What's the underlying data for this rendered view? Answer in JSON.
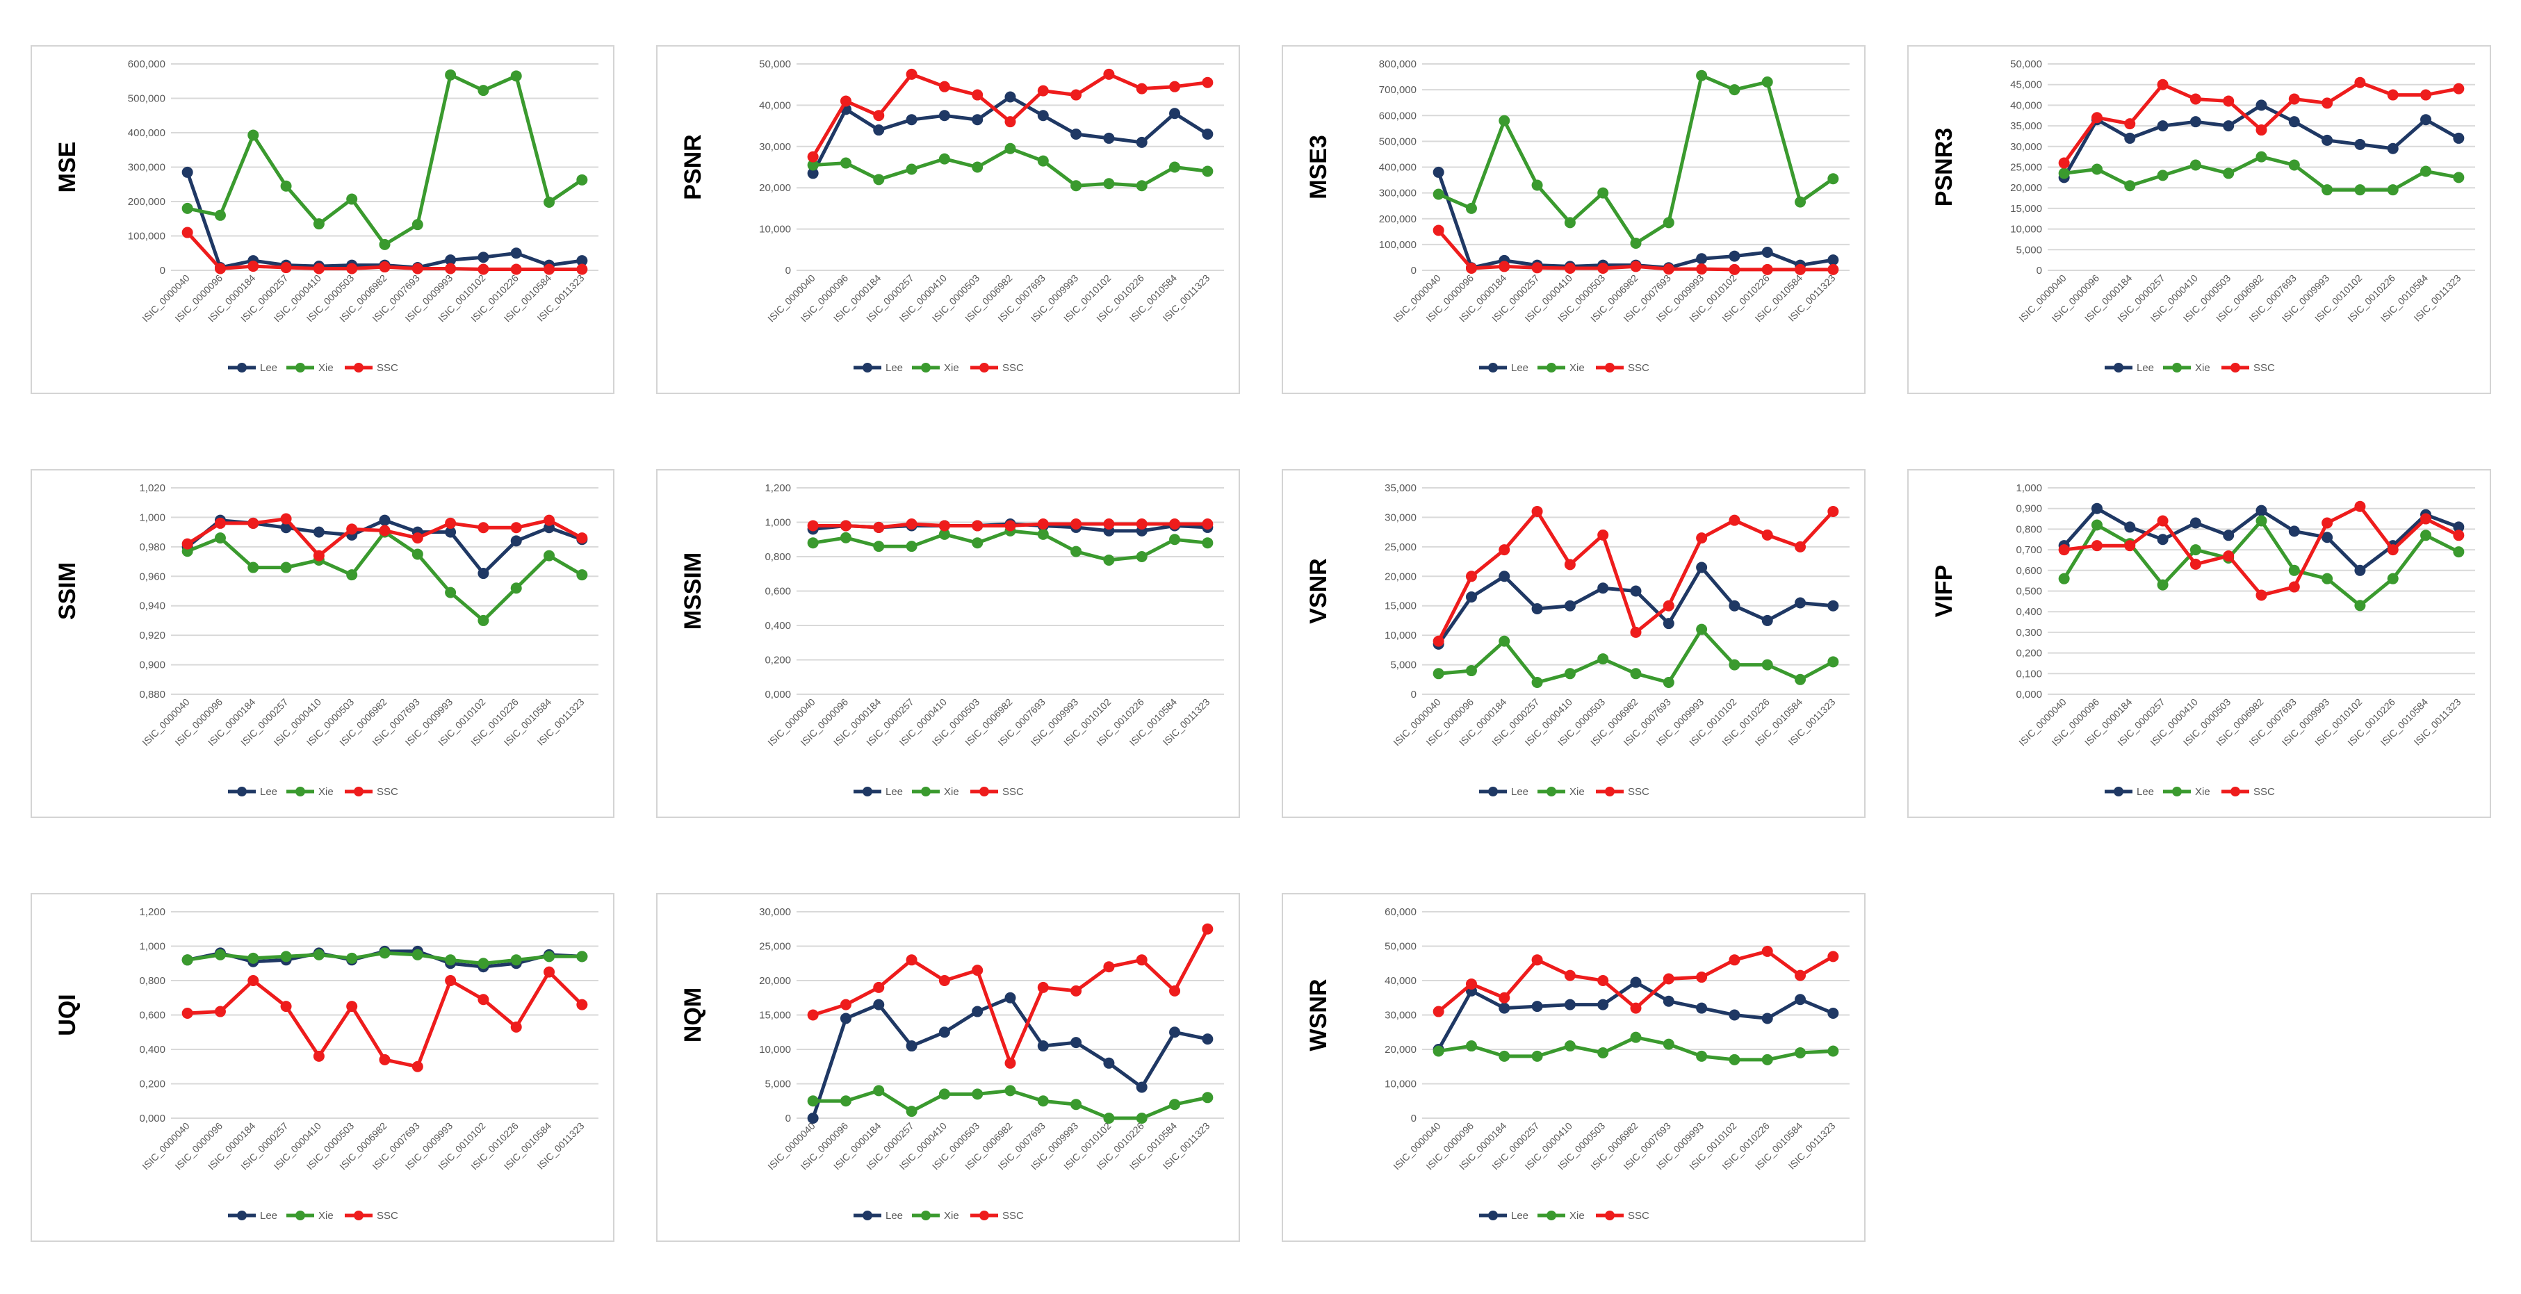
{
  "categories": [
    "ISIC_0000040",
    "ISIC_0000096",
    "ISIC_0000184",
    "ISIC_0000257",
    "ISIC_0000410",
    "ISIC_0000503",
    "ISIC_0006982",
    "ISIC_0007693",
    "ISIC_0009993",
    "ISIC_0010102",
    "ISIC_0010226",
    "ISIC_0010584",
    "ISIC_0011323"
  ],
  "series_meta": [
    {
      "name": "Lee",
      "color": "#1f3864"
    },
    {
      "name": "Xie",
      "color": "#3a9a2e"
    },
    {
      "name": "SSC",
      "color": "#ee1c1c"
    }
  ],
  "chart_data": [
    {
      "type": "line",
      "title": "",
      "ylabel": "MSE",
      "xlabel": "",
      "ylim": [
        0,
        600
      ],
      "yticks": [
        "0",
        "100,000",
        "200,000",
        "300,000",
        "400,000",
        "500,000",
        "600,000"
      ],
      "series": [
        {
          "name": "Lee",
          "values": [
            285,
            8,
            28,
            15,
            12,
            15,
            15,
            8,
            30,
            38,
            50,
            15,
            28
          ]
        },
        {
          "name": "Xie",
          "values": [
            180,
            160,
            393,
            245,
            135,
            207,
            75,
            133,
            568,
            523,
            565,
            198,
            263
          ]
        },
        {
          "name": "SSC",
          "values": [
            110,
            5,
            12,
            8,
            5,
            5,
            10,
            5,
            5,
            3,
            3,
            3,
            3
          ]
        }
      ]
    },
    {
      "type": "line",
      "title": "",
      "ylabel": "PSNR",
      "xlabel": "",
      "ylim": [
        0,
        50
      ],
      "yticks": [
        "0",
        "10,000",
        "20,000",
        "30,000",
        "40,000",
        "50,000"
      ],
      "series": [
        {
          "name": "Lee",
          "values": [
            23.5,
            39,
            34,
            36.5,
            37.5,
            36.5,
            42,
            37.5,
            33,
            32,
            31,
            38,
            33
          ]
        },
        {
          "name": "Xie",
          "values": [
            25.5,
            26,
            22,
            24.5,
            27,
            25,
            29.5,
            26.5,
            20.5,
            21,
            20.5,
            25,
            24
          ]
        },
        {
          "name": "SSC",
          "values": [
            27.5,
            41,
            37.5,
            47.5,
            44.5,
            42.5,
            36,
            43.5,
            42.5,
            47.5,
            44,
            44.5,
            45.5
          ]
        }
      ]
    },
    {
      "type": "line",
      "title": "",
      "ylabel": "MSE3",
      "xlabel": "",
      "ylim": [
        0,
        800
      ],
      "yticks": [
        "0",
        "100,000",
        "200,000",
        "300,000",
        "400,000",
        "500,000",
        "600,000",
        "700,000",
        "800,000"
      ],
      "series": [
        {
          "name": "Lee",
          "values": [
            380,
            10,
            38,
            20,
            15,
            20,
            20,
            10,
            45,
            55,
            70,
            20,
            40
          ]
        },
        {
          "name": "Xie",
          "values": [
            295,
            240,
            580,
            330,
            185,
            300,
            105,
            185,
            755,
            700,
            730,
            265,
            355
          ]
        },
        {
          "name": "SSC",
          "values": [
            155,
            8,
            15,
            10,
            8,
            8,
            15,
            5,
            5,
            3,
            3,
            3,
            3
          ]
        }
      ]
    },
    {
      "type": "line",
      "title": "",
      "ylabel": "PSNR3",
      "xlabel": "",
      "ylim": [
        0,
        50
      ],
      "yticks": [
        "0",
        "5,000",
        "10,000",
        "15,000",
        "20,000",
        "25,000",
        "30,000",
        "35,000",
        "40,000",
        "45,000",
        "50,000"
      ],
      "series": [
        {
          "name": "Lee",
          "values": [
            22.5,
            36.5,
            32,
            35,
            36,
            35,
            40,
            36,
            31.5,
            30.5,
            29.5,
            36.5,
            32
          ]
        },
        {
          "name": "Xie",
          "values": [
            23.5,
            24.5,
            20.5,
            23,
            25.5,
            23.5,
            27.5,
            25.5,
            19.5,
            19.5,
            19.5,
            24,
            22.5
          ]
        },
        {
          "name": "SSC",
          "values": [
            26,
            37,
            35.5,
            45,
            41.5,
            41,
            34,
            41.5,
            40.5,
            45.5,
            42.5,
            42.5,
            44
          ]
        }
      ]
    },
    {
      "type": "line",
      "title": "",
      "ylabel": "SSIM",
      "xlabel": "",
      "ylim": [
        0.88,
        1.02
      ],
      "yticks": [
        "0,880",
        "0,900",
        "0,920",
        "0,940",
        "0,960",
        "0,980",
        "1,000",
        "1,020"
      ],
      "series": [
        {
          "name": "Lee",
          "values": [
            0.98,
            0.998,
            0.996,
            0.993,
            0.99,
            0.988,
            0.998,
            0.99,
            0.99,
            0.962,
            0.984,
            0.993,
            0.985
          ]
        },
        {
          "name": "Xie",
          "values": [
            0.977,
            0.986,
            0.966,
            0.966,
            0.971,
            0.961,
            0.99,
            0.975,
            0.949,
            0.93,
            0.952,
            0.974,
            0.961
          ]
        },
        {
          "name": "SSC",
          "values": [
            0.982,
            0.996,
            0.996,
            0.999,
            0.974,
            0.992,
            0.991,
            0.986,
            0.996,
            0.993,
            0.993,
            0.998,
            0.986
          ]
        }
      ]
    },
    {
      "type": "line",
      "title": "",
      "ylabel": "MSSIM",
      "xlabel": "",
      "ylim": [
        0,
        1.2
      ],
      "yticks": [
        "0,000",
        "0,200",
        "0,400",
        "0,600",
        "0,800",
        "1,000",
        "1,200"
      ],
      "series": [
        {
          "name": "Lee",
          "values": [
            0.96,
            0.98,
            0.97,
            0.98,
            0.98,
            0.98,
            0.99,
            0.98,
            0.97,
            0.95,
            0.95,
            0.98,
            0.97
          ]
        },
        {
          "name": "Xie",
          "values": [
            0.88,
            0.91,
            0.86,
            0.86,
            0.93,
            0.88,
            0.95,
            0.93,
            0.83,
            0.78,
            0.8,
            0.9,
            0.88
          ]
        },
        {
          "name": "SSC",
          "values": [
            0.98,
            0.98,
            0.97,
            0.99,
            0.98,
            0.98,
            0.98,
            0.99,
            0.99,
            0.99,
            0.99,
            0.99,
            0.99
          ]
        }
      ]
    },
    {
      "type": "line",
      "title": "",
      "ylabel": "VSNR",
      "xlabel": "",
      "ylim": [
        0,
        35
      ],
      "yticks": [
        "0",
        "5,000",
        "10,000",
        "15,000",
        "20,000",
        "25,000",
        "30,000",
        "35,000"
      ],
      "series": [
        {
          "name": "Lee",
          "values": [
            8.5,
            16.5,
            20,
            14.5,
            15,
            18,
            17.5,
            12,
            21.5,
            15,
            12.5,
            15.5,
            15
          ]
        },
        {
          "name": "Xie",
          "values": [
            3.5,
            4,
            9,
            2,
            3.5,
            6,
            3.5,
            2,
            11,
            5,
            5,
            2.5,
            5.5
          ]
        },
        {
          "name": "SSC",
          "values": [
            9,
            20,
            24.5,
            31,
            22,
            27,
            10.5,
            15,
            26.5,
            29.5,
            27,
            25,
            31
          ]
        }
      ]
    },
    {
      "type": "line",
      "title": "",
      "ylabel": "VIFP",
      "xlabel": "",
      "ylim": [
        0,
        1
      ],
      "yticks": [
        "0,000",
        "0,100",
        "0,200",
        "0,300",
        "0,400",
        "0,500",
        "0,600",
        "0,700",
        "0,800",
        "0,900",
        "1,000"
      ],
      "series": [
        {
          "name": "Lee",
          "values": [
            0.72,
            0.9,
            0.81,
            0.75,
            0.83,
            0.77,
            0.89,
            0.79,
            0.76,
            0.6,
            0.72,
            0.87,
            0.81
          ]
        },
        {
          "name": "Xie",
          "values": [
            0.56,
            0.82,
            0.73,
            0.53,
            0.7,
            0.66,
            0.84,
            0.6,
            0.56,
            0.43,
            0.56,
            0.77,
            0.69
          ]
        },
        {
          "name": "SSC",
          "values": [
            0.7,
            0.72,
            0.72,
            0.84,
            0.63,
            0.67,
            0.48,
            0.52,
            0.83,
            0.91,
            0.7,
            0.85,
            0.77
          ]
        }
      ]
    },
    {
      "type": "line",
      "title": "",
      "ylabel": "UQI",
      "xlabel": "",
      "ylim": [
        0,
        1.2
      ],
      "yticks": [
        "0,000",
        "0,200",
        "0,400",
        "0,600",
        "0,800",
        "1,000",
        "1,200"
      ],
      "series": [
        {
          "name": "Lee",
          "values": [
            0.92,
            0.96,
            0.91,
            0.92,
            0.96,
            0.92,
            0.97,
            0.97,
            0.9,
            0.88,
            0.9,
            0.95,
            0.94
          ]
        },
        {
          "name": "Xie",
          "values": [
            0.92,
            0.95,
            0.93,
            0.94,
            0.95,
            0.93,
            0.96,
            0.95,
            0.92,
            0.9,
            0.92,
            0.94,
            0.94
          ]
        },
        {
          "name": "SSC",
          "values": [
            0.61,
            0.62,
            0.8,
            0.65,
            0.36,
            0.65,
            0.34,
            0.3,
            0.8,
            0.69,
            0.53,
            0.85,
            0.66
          ]
        }
      ]
    },
    {
      "type": "line",
      "title": "",
      "ylabel": "NQM",
      "xlabel": "",
      "ylim": [
        0,
        30
      ],
      "yticks": [
        "0",
        "5,000",
        "10,000",
        "15,000",
        "20,000",
        "25,000",
        "30,000"
      ],
      "series": [
        {
          "name": "Lee",
          "values": [
            0,
            14.5,
            16.5,
            10.5,
            12.5,
            15.5,
            17.5,
            10.5,
            11,
            8,
            4.5,
            12.5,
            11.5
          ]
        },
        {
          "name": "Xie",
          "values": [
            2.5,
            2.5,
            4,
            1,
            3.5,
            3.5,
            4,
            2.5,
            2,
            0,
            0,
            2,
            3
          ]
        },
        {
          "name": "SSC",
          "values": [
            15,
            16.5,
            19,
            23,
            20,
            21.5,
            8,
            19,
            18.5,
            22,
            23,
            18.5,
            27.5
          ]
        }
      ]
    },
    {
      "type": "line",
      "title": "",
      "ylabel": "WSNR",
      "xlabel": "",
      "ylim": [
        0,
        60
      ],
      "yticks": [
        "0",
        "10,000",
        "20,000",
        "30,000",
        "40,000",
        "50,000",
        "60,000"
      ],
      "series": [
        {
          "name": "Lee",
          "values": [
            20,
            37,
            32,
            32.5,
            33,
            33,
            39.5,
            34,
            32,
            30,
            29,
            34.5,
            30.5
          ]
        },
        {
          "name": "Xie",
          "values": [
            19.5,
            21,
            18,
            18,
            21,
            19,
            23.5,
            21.5,
            18,
            17,
            17,
            19,
            19.5
          ]
        },
        {
          "name": "SSC",
          "values": [
            31,
            39,
            35,
            46,
            41.5,
            40,
            32,
            40.5,
            41,
            46,
            48.5,
            41.5,
            47
          ]
        }
      ]
    }
  ]
}
